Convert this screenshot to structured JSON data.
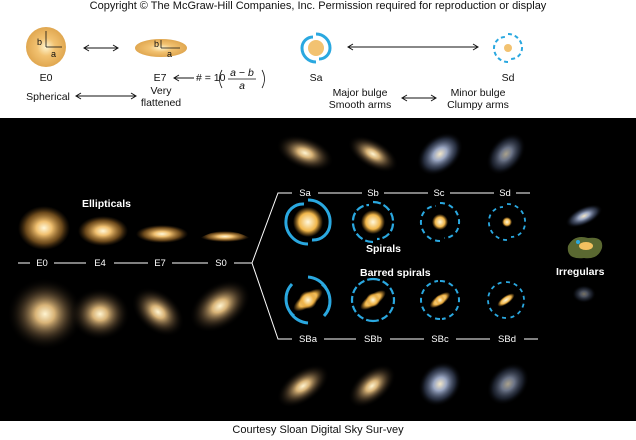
{
  "copyright": "Copyright © The McGraw-Hill Companies, Inc. Permission required for reproduction or display",
  "top": {
    "e0": "E0",
    "e7": "E7",
    "spherical": "Spherical",
    "very": "Very",
    "flattened": "flattened",
    "formula_prefix": "# = 10",
    "formula_num": "a − b",
    "formula_den": "a",
    "axis_a": "a",
    "axis_b": "b",
    "sa": "Sa",
    "sd": "Sd",
    "major_bulge": "Major bulge",
    "smooth_arms": "Smooth arms",
    "minor_bulge": "Minor bulge",
    "clumpy_arms": "Clumpy arms"
  },
  "diagram": {
    "ellipticals_heading": "Ellipticals",
    "spirals_heading": "Spirals",
    "barred_heading": "Barred spirals",
    "irregulars_heading": "Irregulars",
    "elliptical_labels": [
      "E0",
      "E4",
      "E7",
      "S0"
    ],
    "spiral_labels": [
      "Sa",
      "Sb",
      "Sc",
      "Sd"
    ],
    "barred_labels": [
      "SBa",
      "SBb",
      "SBc",
      "SBd"
    ]
  },
  "colors": {
    "galaxy_core": "#fff2c0",
    "galaxy_halo": "#d69a3c",
    "arm_blue": "#2aa8e0",
    "background": "#000000"
  },
  "footer": "Courtesy Sloan Digital Sky Sur-vey"
}
